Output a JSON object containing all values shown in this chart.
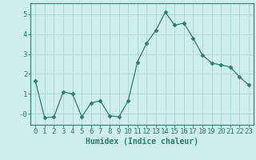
{
  "x": [
    0,
    1,
    2,
    3,
    4,
    5,
    6,
    7,
    8,
    9,
    10,
    11,
    12,
    13,
    14,
    15,
    16,
    17,
    18,
    19,
    20,
    21,
    22,
    23
  ],
  "y": [
    1.65,
    -0.2,
    -0.15,
    1.1,
    1.0,
    -0.15,
    0.55,
    0.65,
    -0.1,
    -0.15,
    0.65,
    2.6,
    3.55,
    4.2,
    5.1,
    4.45,
    4.55,
    3.8,
    2.95,
    2.55,
    2.45,
    2.35,
    1.85,
    1.45
  ],
  "line_color": "#2e7d6e",
  "marker": "D",
  "marker_size": 2.5,
  "bg_color": "#cdeeed",
  "grid_color": "#b0d8d5",
  "xlabel": "Humidex (Indice chaleur)",
  "ylabel": "",
  "xlim": [
    -0.5,
    23.5
  ],
  "ylim": [
    -0.55,
    5.55
  ],
  "yticks": [
    0,
    1,
    2,
    3,
    4,
    5
  ],
  "ytick_labels": [
    "-0",
    "1",
    "2",
    "3",
    "4",
    "5"
  ],
  "xticks": [
    0,
    1,
    2,
    3,
    4,
    5,
    6,
    7,
    8,
    9,
    10,
    11,
    12,
    13,
    14,
    15,
    16,
    17,
    18,
    19,
    20,
    21,
    22,
    23
  ],
  "tick_color": "#2e7d6e",
  "label_color": "#2e7d6e",
  "axis_color": "#2e7d6e",
  "xlabel_fontsize": 7,
  "tick_fontsize": 6.5
}
